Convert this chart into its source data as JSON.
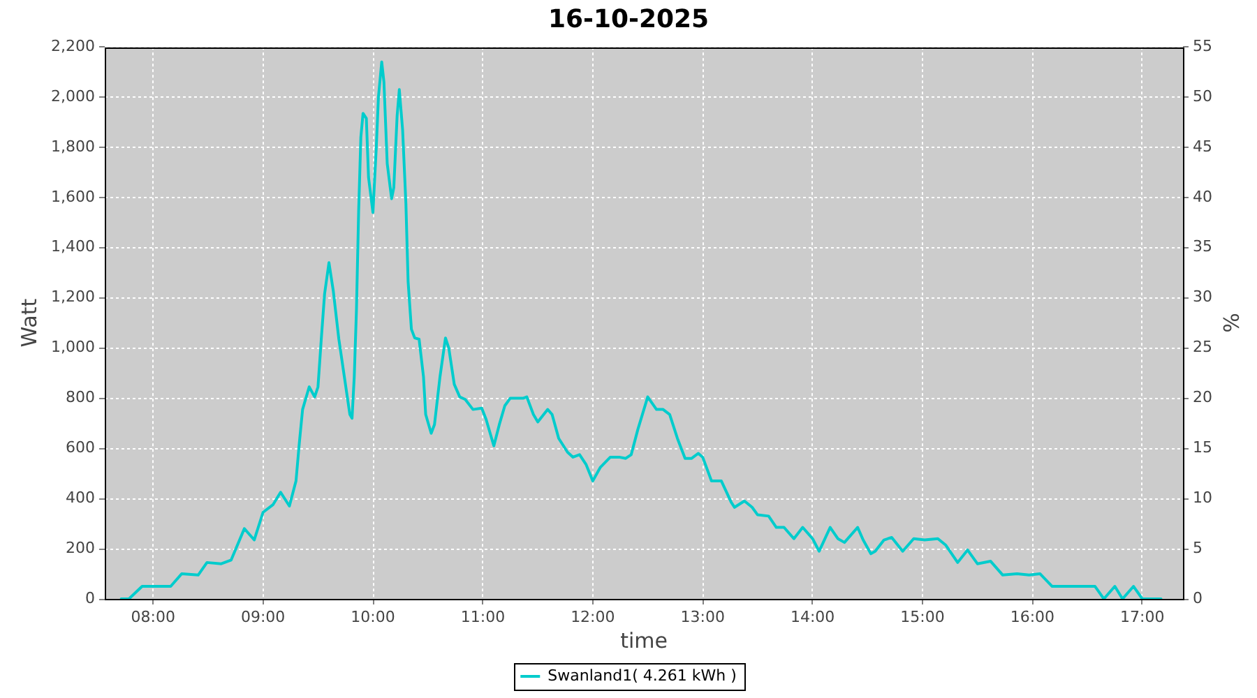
{
  "chart_data": {
    "type": "line",
    "title": "16-10-2025",
    "xlabel": "time",
    "ylabel": "Watt",
    "y2label": "%",
    "x": [
      7.71,
      7.78,
      7.9,
      8.16,
      8.26,
      8.41,
      8.49,
      8.62,
      8.71,
      8.83,
      8.92,
      9.0,
      9.09,
      9.16,
      9.24,
      9.3,
      9.33,
      9.36,
      9.42,
      9.47,
      9.5,
      9.53,
      9.56,
      9.6,
      9.64,
      9.69,
      9.74,
      9.79,
      9.81,
      9.83,
      9.85,
      9.87,
      9.89,
      9.91,
      9.94,
      9.96,
      10.0,
      10.03,
      10.05,
      10.08,
      10.1,
      10.13,
      10.17,
      10.19,
      10.22,
      10.24,
      10.27,
      10.3,
      10.32,
      10.35,
      10.38,
      10.42,
      10.46,
      10.48,
      10.53,
      10.56,
      10.61,
      10.66,
      10.69,
      10.74,
      10.79,
      10.84,
      10.91,
      10.99,
      11.03,
      11.1,
      11.15,
      11.2,
      11.25,
      11.37,
      11.4,
      11.46,
      11.5,
      11.59,
      11.63,
      11.69,
      11.77,
      11.82,
      11.88,
      11.94,
      12.0,
      12.07,
      12.16,
      12.24,
      12.3,
      12.35,
      12.41,
      12.5,
      12.58,
      12.64,
      12.7,
      12.77,
      12.84,
      12.9,
      12.96,
      13.0,
      13.08,
      13.17,
      13.26,
      13.29,
      13.38,
      13.45,
      13.5,
      13.6,
      13.67,
      13.74,
      13.83,
      13.91,
      14.0,
      14.06,
      14.16,
      14.23,
      14.29,
      14.41,
      14.46,
      14.53,
      14.57,
      14.65,
      14.72,
      14.82,
      14.92,
      15.02,
      15.14,
      15.21,
      15.32,
      15.41,
      15.5,
      15.62,
      15.73,
      15.86,
      15.97,
      16.07,
      16.18,
      16.57,
      16.65,
      16.75,
      16.82,
      16.92,
      17.0,
      17.17
    ],
    "series": [
      {
        "name": "Swanland1( 4.261 kWh )",
        "color": "#00cccc",
        "values": [
          0,
          0,
          50,
          50,
          100,
          95,
          145,
          140,
          155,
          280,
          235,
          345,
          375,
          425,
          370,
          470,
          620,
          755,
          845,
          805,
          845,
          1035,
          1215,
          1340,
          1225,
          1035,
          885,
          735,
          720,
          885,
          1150,
          1545,
          1840,
          1935,
          1915,
          1680,
          1540,
          1795,
          2000,
          2140,
          2060,
          1735,
          1595,
          1640,
          1925,
          2030,
          1870,
          1575,
          1265,
          1075,
          1040,
          1035,
          885,
          735,
          660,
          695,
          885,
          1040,
          1000,
          855,
          805,
          795,
          755,
          760,
          715,
          610,
          695,
          770,
          800,
          800,
          805,
          735,
          705,
          755,
          735,
          640,
          585,
          565,
          575,
          535,
          470,
          525,
          565,
          565,
          560,
          575,
          675,
          805,
          755,
          755,
          735,
          640,
          560,
          560,
          580,
          565,
          470,
          470,
          385,
          365,
          390,
          365,
          335,
          330,
          285,
          285,
          240,
          285,
          240,
          190,
          285,
          240,
          225,
          285,
          235,
          180,
          190,
          235,
          245,
          190,
          240,
          235,
          240,
          215,
          145,
          195,
          140,
          150,
          95,
          100,
          95,
          100,
          50,
          50,
          0,
          50,
          0,
          50,
          0,
          0
        ]
      }
    ],
    "xlim": [
      7.56,
      17.37
    ],
    "xticks": [
      {
        "value": 8,
        "label": "08:00"
      },
      {
        "value": 9,
        "label": "09:00"
      },
      {
        "value": 10,
        "label": "10:00"
      },
      {
        "value": 11,
        "label": "11:00"
      },
      {
        "value": 12,
        "label": "12:00"
      },
      {
        "value": 13,
        "label": "13:00"
      },
      {
        "value": 14,
        "label": "14:00"
      },
      {
        "value": 15,
        "label": "15:00"
      },
      {
        "value": 16,
        "label": "16:00"
      },
      {
        "value": 17,
        "label": "17:00"
      }
    ],
    "ylim": [
      0,
      2200
    ],
    "yticks": [
      0,
      200,
      400,
      600,
      800,
      {
        "value": 1000,
        "label": "1,000"
      },
      {
        "value": 1200,
        "label": "1,200"
      },
      {
        "value": 1400,
        "label": "1,400"
      },
      {
        "value": 1600,
        "label": "1,600"
      },
      {
        "value": 1800,
        "label": "1,800"
      },
      {
        "value": 2000,
        "label": "2,000"
      },
      {
        "value": 2200,
        "label": "2,200"
      }
    ],
    "y2lim": [
      0,
      55
    ],
    "y2ticks": [
      0,
      5,
      10,
      15,
      20,
      25,
      30,
      35,
      40,
      45,
      50,
      55
    ],
    "grid": true,
    "legend": "bottom",
    "marker": "none",
    "line_style": "solid"
  }
}
